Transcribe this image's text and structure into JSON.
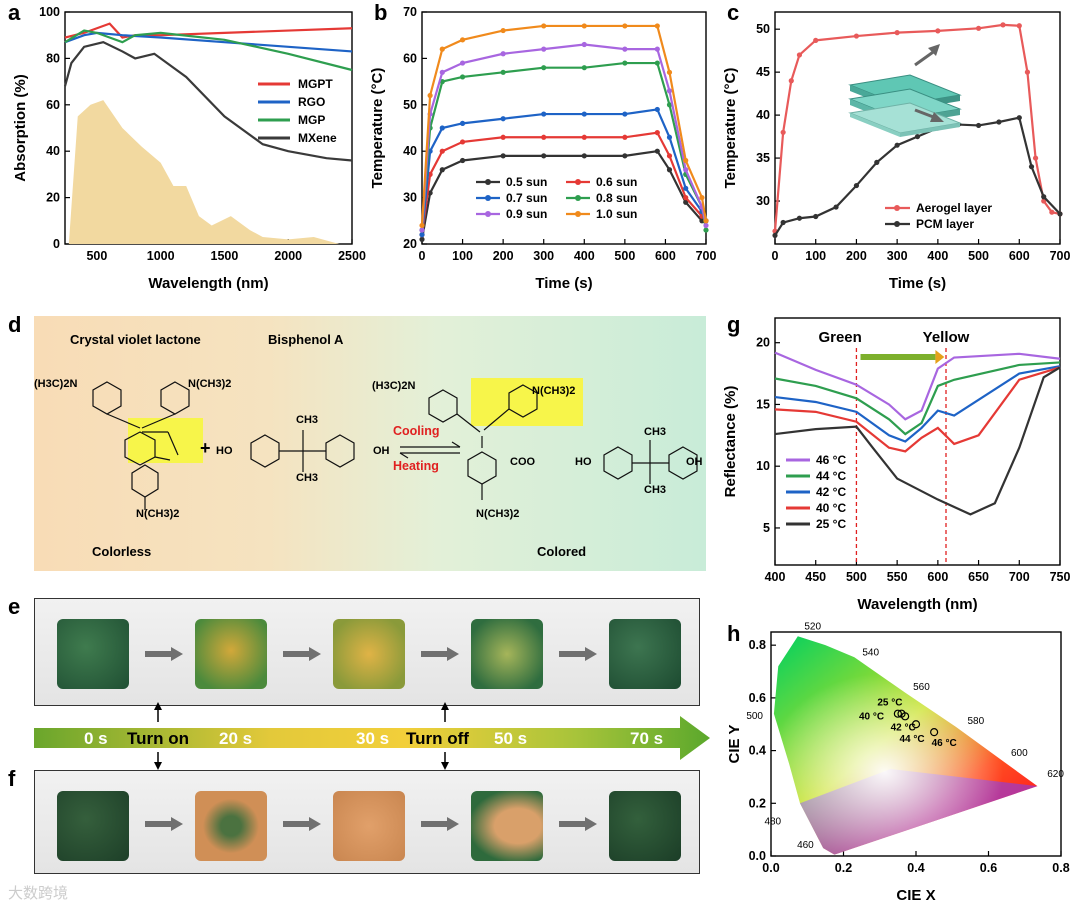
{
  "panel_labels": {
    "a": "a",
    "b": "b",
    "c": "c",
    "d": "d",
    "e": "e",
    "f": "f",
    "g": "g",
    "h": "h"
  },
  "chart_data": [
    {
      "panel": "a",
      "type": "line",
      "xlabel": "Wavelength (nm)",
      "ylabel": "Absorption (%)",
      "xlim": [
        250,
        2500
      ],
      "ylim": [
        0,
        100
      ],
      "xticks": [
        "500",
        "1000",
        "1500",
        "2000",
        "2500"
      ],
      "yticks": [
        "0",
        "20",
        "40",
        "60",
        "80",
        "100"
      ],
      "legend_position": "right",
      "series": [
        {
          "name": "MGPT",
          "color": "#e53935",
          "x": [
            250,
            400,
            500,
            600,
            700,
            800,
            1000,
            1500,
            2000,
            2500
          ],
          "y": [
            89,
            91,
            93,
            95,
            89,
            90,
            90,
            91,
            92,
            93
          ]
        },
        {
          "name": "RGO",
          "color": "#1e63c6",
          "x": [
            250,
            400,
            500,
            700,
            1000,
            1500,
            2000,
            2500
          ],
          "y": [
            87,
            90,
            91,
            90,
            89,
            87,
            85,
            83
          ]
        },
        {
          "name": "MGP",
          "color": "#2e9e4f",
          "x": [
            250,
            400,
            500,
            700,
            800,
            1000,
            1500,
            2000,
            2500
          ],
          "y": [
            87,
            92,
            91,
            87,
            90,
            91,
            88,
            82,
            75
          ]
        },
        {
          "name": "MXene",
          "color": "#3a3a3a",
          "x": [
            250,
            300,
            400,
            550,
            700,
            800,
            950,
            1200,
            1500,
            1800,
            2000,
            2300,
            2500
          ],
          "y": [
            68,
            78,
            85,
            87,
            83,
            80,
            82,
            72,
            55,
            43,
            40,
            37,
            36
          ]
        }
      ],
      "background_spectrum": {
        "color": "#f2d9a0",
        "x": [
          280,
          350,
          450,
          550,
          700,
          850,
          1000,
          1100,
          1200,
          1300,
          1400,
          1550,
          1700,
          1800,
          2000,
          2200,
          2400
        ],
        "y": [
          0,
          55,
          60,
          62,
          50,
          42,
          35,
          25,
          25,
          12,
          8,
          12,
          6,
          3,
          2,
          3,
          0
        ]
      }
    },
    {
      "panel": "b",
      "type": "line",
      "xlabel": "Time (s)",
      "ylabel": "Temperature (°C)",
      "xlim": [
        0,
        700
      ],
      "ylim": [
        20,
        70
      ],
      "xticks": [
        "0",
        "100",
        "200",
        "300",
        "400",
        "500",
        "600",
        "700"
      ],
      "yticks": [
        "20",
        "30",
        "40",
        "50",
        "60",
        "70"
      ],
      "legend_position": "bottom-center",
      "series": [
        {
          "name": "0.5 sun",
          "color": "#333333",
          "x": [
            0,
            20,
            50,
            100,
            200,
            300,
            400,
            500,
            580,
            610,
            650,
            690,
            700
          ],
          "y": [
            21,
            31,
            36,
            38,
            39,
            39,
            39,
            39,
            40,
            36,
            29,
            25,
            25
          ]
        },
        {
          "name": "0.6 sun",
          "color": "#e53935",
          "x": [
            0,
            20,
            50,
            100,
            200,
            300,
            400,
            500,
            580,
            610,
            650,
            690,
            700
          ],
          "y": [
            22,
            35,
            40,
            42,
            43,
            43,
            43,
            43,
            44,
            39,
            30,
            26,
            25
          ]
        },
        {
          "name": "0.7 sun",
          "color": "#1e63c6",
          "x": [
            0,
            20,
            50,
            100,
            200,
            300,
            400,
            500,
            580,
            610,
            650,
            690,
            700
          ],
          "y": [
            22,
            40,
            45,
            46,
            47,
            48,
            48,
            48,
            49,
            43,
            32,
            27,
            25
          ]
        },
        {
          "name": "0.8 sun",
          "color": "#2e9e4f",
          "x": [
            0,
            20,
            50,
            100,
            200,
            300,
            400,
            500,
            580,
            610,
            650,
            690,
            700
          ],
          "y": [
            23,
            45,
            55,
            56,
            57,
            58,
            58,
            59,
            59,
            50,
            35,
            28,
            23
          ]
        },
        {
          "name": "0.9 sun",
          "color": "#a866e0",
          "x": [
            0,
            20,
            50,
            100,
            200,
            300,
            400,
            500,
            580,
            610,
            650,
            690,
            700
          ],
          "y": [
            23,
            48,
            57,
            59,
            61,
            62,
            63,
            62,
            62,
            53,
            36,
            28,
            24
          ]
        },
        {
          "name": "1.0 sun",
          "color": "#f08a1c",
          "x": [
            0,
            20,
            50,
            100,
            200,
            300,
            400,
            500,
            580,
            610,
            650,
            690,
            700
          ],
          "y": [
            24,
            52,
            62,
            64,
            66,
            67,
            67,
            67,
            67,
            57,
            38,
            30,
            25
          ]
        }
      ]
    },
    {
      "panel": "c",
      "type": "line",
      "xlabel": "Time (s)",
      "ylabel": "Temperature (°C)",
      "xlim": [
        0,
        700
      ],
      "ylim": [
        25,
        52
      ],
      "xticks": [
        "0",
        "100",
        "200",
        "300",
        "400",
        "500",
        "600",
        "700"
      ],
      "yticks": [
        "30",
        "35",
        "40",
        "45",
        "50"
      ],
      "legend_position": "bottom-right",
      "series": [
        {
          "name": "Aerogel layer",
          "color": "#e85a5a",
          "x": [
            0,
            20,
            40,
            60,
            100,
            200,
            300,
            400,
            500,
            560,
            600,
            620,
            640,
            660,
            680,
            700
          ],
          "y": [
            26.5,
            38,
            44,
            47,
            48.7,
            49.2,
            49.6,
            49.8,
            50.1,
            50.5,
            50.4,
            45,
            35,
            30,
            28.7,
            28.5
          ]
        },
        {
          "name": "PCM layer",
          "color": "#333333",
          "x": [
            0,
            20,
            60,
            100,
            150,
            200,
            250,
            300,
            350,
            400,
            450,
            500,
            550,
            600,
            630,
            660,
            700
          ],
          "y": [
            26,
            27.5,
            28,
            28.2,
            29.3,
            31.8,
            34.5,
            36.5,
            37.5,
            38.5,
            38.9,
            38.8,
            39.2,
            39.7,
            34,
            30.5,
            28.5
          ]
        }
      ]
    },
    {
      "panel": "g",
      "type": "line",
      "xlabel": "Wavelength (nm)",
      "ylabel": "Reflectance (%)",
      "xlim": [
        400,
        750
      ],
      "ylim": [
        2,
        22
      ],
      "xticks": [
        "400",
        "450",
        "500",
        "550",
        "600",
        "650",
        "700",
        "750"
      ],
      "yticks": [
        "5",
        "10",
        "15",
        "20"
      ],
      "legend_position": "bottom-left",
      "annotations": [
        "Green",
        "Yellow"
      ],
      "series": [
        {
          "name": "46 °C",
          "color": "#a866e0",
          "x": [
            400,
            450,
            500,
            540,
            560,
            580,
            600,
            620,
            700,
            750
          ],
          "y": [
            19.2,
            17.8,
            16.6,
            15,
            13.8,
            14.5,
            17.9,
            18.8,
            19.1,
            18.7
          ]
        },
        {
          "name": "44 °C",
          "color": "#2e9e4f",
          "x": [
            400,
            450,
            500,
            540,
            560,
            580,
            600,
            620,
            700,
            750
          ],
          "y": [
            17.1,
            16.5,
            15.5,
            13.8,
            12.6,
            13.5,
            16.5,
            17,
            18.2,
            18.4
          ]
        },
        {
          "name": "42 °C",
          "color": "#1e63c6",
          "x": [
            400,
            450,
            500,
            540,
            560,
            580,
            600,
            620,
            700,
            750
          ],
          "y": [
            15.6,
            15.2,
            14.4,
            12.5,
            12,
            13.1,
            14.5,
            14.1,
            17.5,
            18.1
          ]
        },
        {
          "name": "40 °C",
          "color": "#e53935",
          "x": [
            400,
            450,
            500,
            540,
            560,
            580,
            600,
            620,
            650,
            700,
            750
          ],
          "y": [
            14.6,
            14.4,
            13.6,
            11.5,
            11.2,
            12.3,
            13.1,
            11.8,
            12.5,
            17,
            18
          ]
        },
        {
          "name": "25 °C",
          "color": "#333333",
          "x": [
            400,
            450,
            500,
            520,
            550,
            600,
            640,
            670,
            700,
            730,
            750
          ],
          "y": [
            12.6,
            13,
            13.2,
            11.5,
            9,
            7.3,
            6.1,
            7,
            11.5,
            17.2,
            18
          ]
        }
      ]
    },
    {
      "panel": "h",
      "type": "scatter",
      "xlabel": "CIE X",
      "ylabel": "CIE Y",
      "xlim": [
        0,
        0.8
      ],
      "ylim": [
        0,
        0.85
      ],
      "xticks": [
        "0.0",
        "0.2",
        "0.4",
        "0.6",
        "0.8"
      ],
      "yticks": [
        "0.0",
        "0.2",
        "0.4",
        "0.6",
        "0.8"
      ],
      "wavelength_labels": [
        "520",
        "540",
        "560",
        "580",
        "600",
        "620",
        "500",
        "480",
        "460"
      ],
      "points": [
        {
          "label": "25 °C",
          "x": 0.35,
          "y": 0.54
        },
        {
          "label": "40 °C",
          "x": 0.36,
          "y": 0.54
        },
        {
          "label": "42 °C",
          "x": 0.37,
          "y": 0.53
        },
        {
          "label": "44 °C",
          "x": 0.4,
          "y": 0.5
        },
        {
          "label": "46 °C",
          "x": 0.45,
          "y": 0.47
        }
      ]
    }
  ],
  "panel_d": {
    "title_left": "Crystal violet lactone",
    "title_right": "Bisphenol A",
    "group_nme2": "N(CH3)2",
    "group_h3c": "(H3C)2N",
    "plus": "+",
    "oh_left": "HO",
    "oh_right": "OH",
    "ch3": "CH3",
    "cooling": "Cooling",
    "heating": "Heating",
    "coo": "COO",
    "state_left": "Colorless",
    "state_right": "Colored",
    "colors": {
      "cooling": "#e02020",
      "highlight": "#f7f54a"
    }
  },
  "timeline": {
    "ticks": [
      "0 s",
      "20 s",
      "30 s",
      "50 s",
      "70 s"
    ],
    "turn_on": "Turn on",
    "turn_off": "Turn off"
  },
  "photos_e": {
    "samples": [
      "green",
      "yellow-green",
      "yellow-green",
      "green-yellow",
      "green"
    ]
  },
  "photos_f": {
    "samples": [
      "green",
      "orange-green",
      "orange",
      "orange-green",
      "green"
    ]
  },
  "watermark": "大数跨境"
}
